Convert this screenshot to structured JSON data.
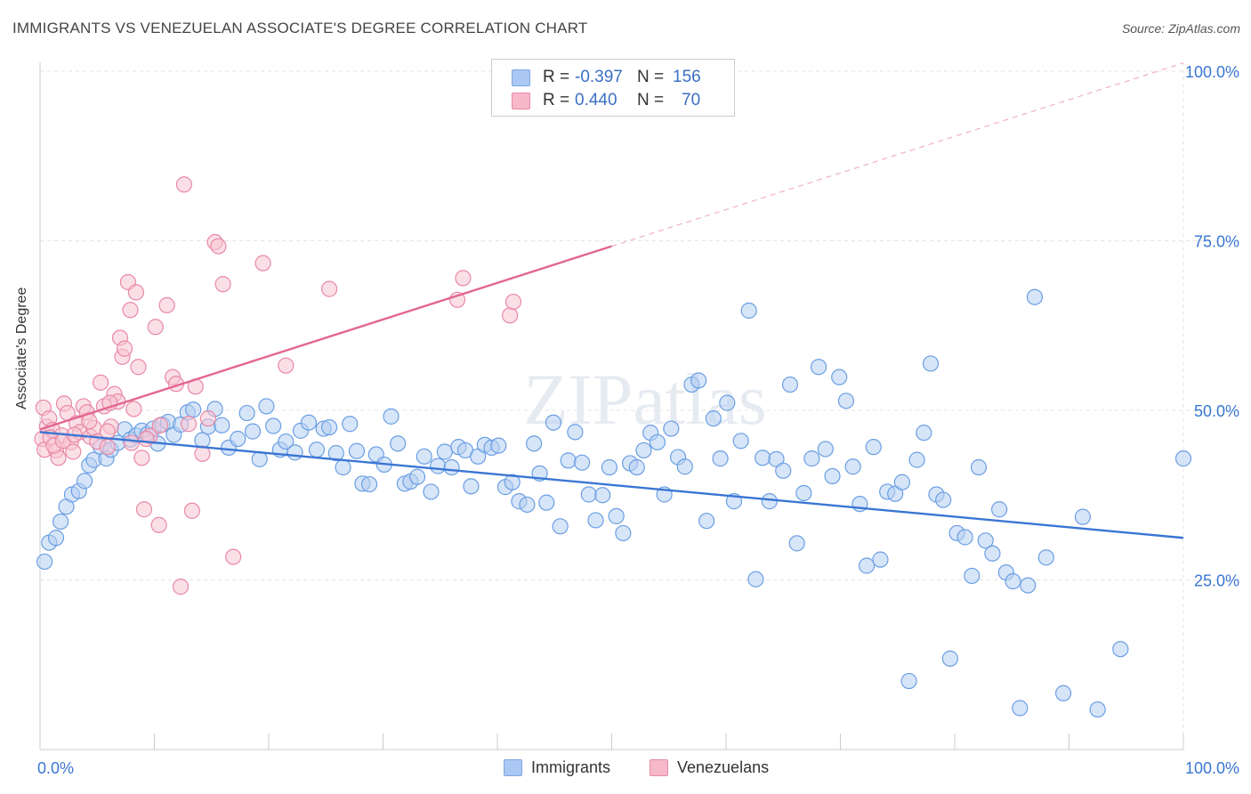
{
  "title": "IMMIGRANTS VS VENEZUELAN ASSOCIATE'S DEGREE CORRELATION CHART",
  "source": "Source: ZipAtlas.com",
  "watermark": "ZIPatlas",
  "legend_stats": [
    {
      "r_label": "R =",
      "r_value": "-0.397",
      "n_label": "N =",
      "n_value": "156",
      "color": "#aac8f3",
      "border": "#7fa6e0"
    },
    {
      "r_label": "R =",
      "r_value": "0.440",
      "n_label": "N =",
      "n_value": "70",
      "color": "#f7b8cb",
      "border": "#e88aa6"
    }
  ],
  "chart_data": {
    "type": "scatter",
    "ylabel": "Associate's Degree",
    "xlim": [
      0,
      100
    ],
    "ylim": [
      0,
      100
    ],
    "x_tick_labels": [
      "0.0%",
      "100.0%"
    ],
    "y_tick_values": [
      25,
      50,
      75,
      100
    ],
    "y_tick_labels": [
      "25.0%",
      "50.0%",
      "75.0%",
      "100.0%"
    ],
    "grid": true,
    "legend": "bottom-center",
    "series": [
      {
        "name": "Immigrants",
        "color": "#6a9fe3",
        "fill": "#b6d0f3",
        "trend": {
          "x0": 0,
          "y0": 46.8,
          "x1": 100,
          "y1": 31.2,
          "color": "#3a76d3"
        },
        "points": [
          [
            0.4,
            27.7
          ],
          [
            0.8,
            30.5
          ],
          [
            1.4,
            31.2
          ],
          [
            1.8,
            33.6
          ],
          [
            2.3,
            35.8
          ],
          [
            2.8,
            37.6
          ],
          [
            3.4,
            38.1
          ],
          [
            3.9,
            39.6
          ],
          [
            4.3,
            41.9
          ],
          [
            4.7,
            42.7
          ],
          [
            5.3,
            44.6
          ],
          [
            5.8,
            42.9
          ],
          [
            6.2,
            44.2
          ],
          [
            6.8,
            45.2
          ],
          [
            7.4,
            47.2
          ],
          [
            7.9,
            45.7
          ],
          [
            8.4,
            46.3
          ],
          [
            8.9,
            47.0
          ],
          [
            9.4,
            46.5
          ],
          [
            9.9,
            47.3
          ],
          [
            10.3,
            45.1
          ],
          [
            10.7,
            47.9
          ],
          [
            11.2,
            48.3
          ],
          [
            11.7,
            46.4
          ],
          [
            12.3,
            47.9
          ],
          [
            12.9,
            49.7
          ],
          [
            13.4,
            50.1
          ],
          [
            14.2,
            45.6
          ],
          [
            14.7,
            47.6
          ],
          [
            15.3,
            50.2
          ],
          [
            15.9,
            47.8
          ],
          [
            16.5,
            44.5
          ],
          [
            17.3,
            45.8
          ],
          [
            18.1,
            49.6
          ],
          [
            18.6,
            46.9
          ],
          [
            19.2,
            42.8
          ],
          [
            19.8,
            50.6
          ],
          [
            20.4,
            47.7
          ],
          [
            21.0,
            44.2
          ],
          [
            21.5,
            45.4
          ],
          [
            22.3,
            43.8
          ],
          [
            22.8,
            47.0
          ],
          [
            23.5,
            48.2
          ],
          [
            24.2,
            44.2
          ],
          [
            24.8,
            47.3
          ],
          [
            25.3,
            47.5
          ],
          [
            25.9,
            43.7
          ],
          [
            26.5,
            41.6
          ],
          [
            27.1,
            48.0
          ],
          [
            27.7,
            44.0
          ],
          [
            28.2,
            39.2
          ],
          [
            28.8,
            39.1
          ],
          [
            29.4,
            43.5
          ],
          [
            30.1,
            42.0
          ],
          [
            30.7,
            49.1
          ],
          [
            31.3,
            45.1
          ],
          [
            31.9,
            39.2
          ],
          [
            32.4,
            39.5
          ],
          [
            33.0,
            40.2
          ],
          [
            33.6,
            43.2
          ],
          [
            34.2,
            38.0
          ],
          [
            34.8,
            41.8
          ],
          [
            35.4,
            43.9
          ],
          [
            36.0,
            41.6
          ],
          [
            36.6,
            44.6
          ],
          [
            37.2,
            44.1
          ],
          [
            37.7,
            38.8
          ],
          [
            38.3,
            43.2
          ],
          [
            38.9,
            44.9
          ],
          [
            39.5,
            44.5
          ],
          [
            40.1,
            44.8
          ],
          [
            40.7,
            38.7
          ],
          [
            41.3,
            39.4
          ],
          [
            41.9,
            36.6
          ],
          [
            42.6,
            36.1
          ],
          [
            43.2,
            45.1
          ],
          [
            43.7,
            40.7
          ],
          [
            44.3,
            36.4
          ],
          [
            44.9,
            48.2
          ],
          [
            45.5,
            32.9
          ],
          [
            46.2,
            42.6
          ],
          [
            46.8,
            46.8
          ],
          [
            47.4,
            42.3
          ],
          [
            48.0,
            37.6
          ],
          [
            48.6,
            33.8
          ],
          [
            49.2,
            37.5
          ],
          [
            49.8,
            41.6
          ],
          [
            50.4,
            34.4
          ],
          [
            51.0,
            31.9
          ],
          [
            51.6,
            42.2
          ],
          [
            52.2,
            41.6
          ],
          [
            52.8,
            44.1
          ],
          [
            53.4,
            46.7
          ],
          [
            54.0,
            45.3
          ],
          [
            54.6,
            37.6
          ],
          [
            55.2,
            47.3
          ],
          [
            55.8,
            43.1
          ],
          [
            56.4,
            41.7
          ],
          [
            57.0,
            53.8
          ],
          [
            57.6,
            54.4
          ],
          [
            58.3,
            33.7
          ],
          [
            58.9,
            48.8
          ],
          [
            59.5,
            42.9
          ],
          [
            60.1,
            51.1
          ],
          [
            60.7,
            36.6
          ],
          [
            61.3,
            45.5
          ],
          [
            62.0,
            64.7
          ],
          [
            62.6,
            25.1
          ],
          [
            63.2,
            43.0
          ],
          [
            63.8,
            36.6
          ],
          [
            64.4,
            42.8
          ],
          [
            65.0,
            41.1
          ],
          [
            65.6,
            53.8
          ],
          [
            66.2,
            30.4
          ],
          [
            66.8,
            37.8
          ],
          [
            67.5,
            42.9
          ],
          [
            68.1,
            56.4
          ],
          [
            68.7,
            44.3
          ],
          [
            69.3,
            40.3
          ],
          [
            69.9,
            54.9
          ],
          [
            70.5,
            51.4
          ],
          [
            71.1,
            41.7
          ],
          [
            71.7,
            36.2
          ],
          [
            72.3,
            27.1
          ],
          [
            72.9,
            44.6
          ],
          [
            73.5,
            28.0
          ],
          [
            74.1,
            38.0
          ],
          [
            74.8,
            37.7
          ],
          [
            75.4,
            39.4
          ],
          [
            76.0,
            10.1
          ],
          [
            76.7,
            42.7
          ],
          [
            77.3,
            46.7
          ],
          [
            77.9,
            56.9
          ],
          [
            78.4,
            37.6
          ],
          [
            79.0,
            36.8
          ],
          [
            79.6,
            13.4
          ],
          [
            80.2,
            31.9
          ],
          [
            80.9,
            31.3
          ],
          [
            81.5,
            25.6
          ],
          [
            82.1,
            41.6
          ],
          [
            82.7,
            30.8
          ],
          [
            83.3,
            28.9
          ],
          [
            83.9,
            35.4
          ],
          [
            84.5,
            26.1
          ],
          [
            85.1,
            24.8
          ],
          [
            85.7,
            6.1
          ],
          [
            86.4,
            24.2
          ],
          [
            87.0,
            66.7
          ],
          [
            88.0,
            28.3
          ],
          [
            89.5,
            8.3
          ],
          [
            91.2,
            34.3
          ],
          [
            92.5,
            5.9
          ],
          [
            94.5,
            14.8
          ],
          [
            100.0,
            42.9
          ]
        ]
      },
      {
        "name": "Venezuelans",
        "color": "#e889a7",
        "fill": "#f8c4d3",
        "trend": {
          "x0": 0,
          "y0": 47.2,
          "x1": 50,
          "y1": 74.2,
          "color": "#e2668f"
        },
        "trend_ext": {
          "x0": 50,
          "y0": 74.2,
          "x1": 100,
          "y1": 101.2
        },
        "points": [
          [
            0.2,
            45.8
          ],
          [
            0.3,
            50.4
          ],
          [
            0.4,
            44.2
          ],
          [
            0.6,
            47.6
          ],
          [
            0.8,
            48.8
          ],
          [
            1.1,
            47.1
          ],
          [
            1.4,
            44.1
          ],
          [
            1.6,
            43.0
          ],
          [
            1.9,
            46.3
          ],
          [
            2.1,
            51.0
          ],
          [
            2.4,
            49.6
          ],
          [
            2.7,
            45.3
          ],
          [
            2.9,
            43.9
          ],
          [
            3.2,
            48.1
          ],
          [
            3.5,
            46.8
          ],
          [
            3.8,
            50.6
          ],
          [
            4.1,
            49.7
          ],
          [
            4.4,
            46.1
          ],
          [
            4.7,
            47.4
          ],
          [
            5.0,
            45.4
          ],
          [
            5.3,
            54.1
          ],
          [
            5.6,
            50.6
          ],
          [
            5.9,
            44.6
          ],
          [
            6.2,
            47.6
          ],
          [
            6.5,
            52.4
          ],
          [
            6.8,
            51.3
          ],
          [
            7.0,
            60.7
          ],
          [
            7.2,
            57.9
          ],
          [
            7.4,
            59.1
          ],
          [
            7.7,
            68.9
          ],
          [
            7.9,
            64.8
          ],
          [
            8.2,
            50.2
          ],
          [
            8.4,
            67.4
          ],
          [
            8.6,
            56.4
          ],
          [
            8.9,
            43.0
          ],
          [
            9.1,
            35.4
          ],
          [
            9.6,
            46.2
          ],
          [
            10.1,
            62.3
          ],
          [
            10.4,
            33.1
          ],
          [
            11.1,
            65.5
          ],
          [
            11.6,
            54.9
          ],
          [
            11.9,
            53.9
          ],
          [
            12.3,
            24.0
          ],
          [
            12.6,
            83.3
          ],
          [
            13.3,
            35.2
          ],
          [
            13.6,
            53.5
          ],
          [
            14.2,
            43.6
          ],
          [
            14.7,
            48.8
          ],
          [
            15.3,
            74.8
          ],
          [
            15.6,
            74.2
          ],
          [
            16.0,
            68.6
          ],
          [
            16.9,
            28.4
          ],
          [
            19.5,
            71.7
          ],
          [
            21.5,
            56.6
          ],
          [
            25.3,
            67.9
          ],
          [
            36.5,
            66.3
          ],
          [
            37.0,
            69.5
          ],
          [
            41.1,
            64.0
          ],
          [
            41.4,
            66.0
          ],
          [
            0.9,
            46.0
          ],
          [
            1.2,
            44.8
          ],
          [
            2.0,
            45.5
          ],
          [
            3.0,
            46.4
          ],
          [
            4.3,
            48.4
          ],
          [
            5.9,
            46.9
          ],
          [
            6.1,
            51.1
          ],
          [
            8.0,
            45.2
          ],
          [
            9.3,
            45.8
          ],
          [
            10.5,
            47.8
          ],
          [
            13.0,
            48.0
          ]
        ]
      }
    ]
  }
}
